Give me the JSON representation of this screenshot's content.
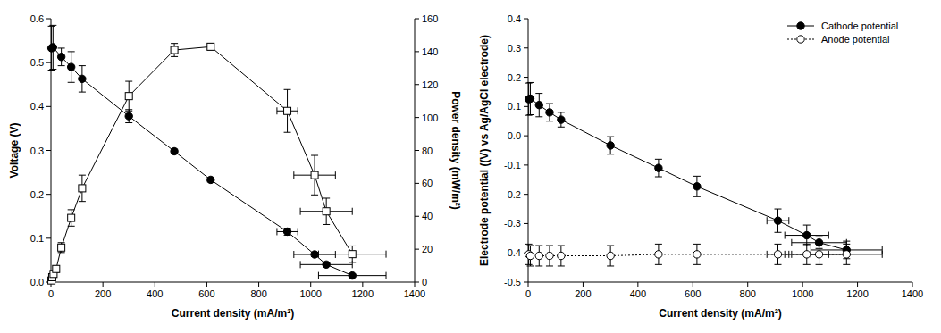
{
  "chart_data": [
    {
      "type": "line",
      "x_label": "Current density (mA/m²)",
      "y_label": "Voltage (V)",
      "y2_label": "Power density (mW/m²)",
      "xlim": [
        0,
        1400
      ],
      "xticks": [
        0,
        200,
        400,
        600,
        800,
        1000,
        1200,
        1400
      ],
      "ylim": [
        0,
        0.6
      ],
      "yticks": [
        {
          "value": 0,
          "label": "0.0"
        },
        0.1,
        0.2,
        0.3,
        0.4,
        0.5,
        0.6
      ],
      "y2lim": [
        0,
        160
      ],
      "y2ticks": [
        0,
        20,
        40,
        60,
        80,
        100,
        120,
        140,
        160
      ],
      "series": [
        {
          "name": "Voltage",
          "color": "#000000",
          "marker": "filled-circle",
          "line_style": "solid",
          "x": [
            2,
            8,
            40,
            78,
            120,
            300,
            475,
            615,
            910,
            1015,
            1060,
            1160
          ],
          "values": [
            0.533,
            0.535,
            0.513,
            0.49,
            0.463,
            0.378,
            0.298,
            0.233,
            0.115,
            0.063,
            0.04,
            0.015
          ],
          "errors": [
            0.05,
            0.05,
            0.02,
            0.035,
            0.03,
            0.015,
            0.005,
            0.005,
            0.008,
            0.005,
            0.003,
            0.003
          ],
          "x_errors": [
            0,
            0,
            0,
            0,
            0,
            0,
            0,
            0,
            40,
            80,
            100,
            130
          ]
        },
        {
          "name": "Power density",
          "color": "#000000",
          "marker": "open-square",
          "line_style": "solid",
          "axis": "y2",
          "x": [
            2,
            5,
            10,
            20,
            40,
            78,
            120,
            300,
            475,
            615,
            910,
            1015,
            1060,
            1160
          ],
          "values": [
            1,
            3,
            5,
            8,
            21,
            39,
            57,
            113,
            141,
            143,
            104,
            65,
            43,
            17
          ],
          "errors": [
            0.5,
            1,
            1,
            2,
            3,
            5,
            8,
            9,
            4,
            2,
            13,
            12,
            8,
            5
          ],
          "x_errors": [
            0,
            0,
            0,
            0,
            0,
            0,
            0,
            0,
            0,
            0,
            40,
            80,
            100,
            130
          ]
        }
      ]
    },
    {
      "type": "line",
      "x_label": "Current density (mA/m²)",
      "y_label": "Electrode potential ((V) vs Ag/AgCl electrode)",
      "legend": "upper-right",
      "xlim": [
        0,
        1400
      ],
      "xticks": [
        0,
        200,
        400,
        600,
        800,
        1000,
        1200,
        1400
      ],
      "ylim": [
        -0.5,
        0.4
      ],
      "yticks": [
        -0.5,
        -0.4,
        -0.3,
        -0.2,
        -0.1,
        {
          "value": 0,
          "label": "0.0"
        },
        0.1,
        0.2,
        0.3,
        0.4
      ],
      "series": [
        {
          "name": "Cathode potential",
          "color": "#000000",
          "marker": "filled-circle",
          "line_style": "solid",
          "x": [
            2,
            8,
            40,
            78,
            120,
            300,
            475,
            615,
            910,
            1015,
            1060,
            1160
          ],
          "values": [
            0.125,
            0.127,
            0.105,
            0.08,
            0.055,
            -0.033,
            -0.11,
            -0.173,
            -0.29,
            -0.34,
            -0.365,
            -0.39
          ],
          "errors": [
            0.055,
            0.055,
            0.04,
            0.03,
            0.025,
            0.03,
            0.03,
            0.035,
            0.04,
            0.035,
            0.02,
            0.03
          ],
          "x_errors": [
            0,
            0,
            0,
            0,
            0,
            0,
            0,
            0,
            40,
            80,
            100,
            130
          ]
        },
        {
          "name": "Anode potential",
          "color": "#000000",
          "marker": "open-circle",
          "line_style": "dotted",
          "x": [
            2,
            8,
            40,
            78,
            120,
            300,
            475,
            615,
            910,
            1015,
            1060,
            1160
          ],
          "values": [
            -0.405,
            -0.41,
            -0.41,
            -0.41,
            -0.41,
            -0.41,
            -0.405,
            -0.405,
            -0.405,
            -0.405,
            -0.405,
            -0.405
          ],
          "errors": [
            0.035,
            0.035,
            0.035,
            0.035,
            0.035,
            0.035,
            0.035,
            0.035,
            0.035,
            0.035,
            0.035,
            0.035
          ],
          "x_errors": [
            0,
            0,
            0,
            0,
            0,
            0,
            0,
            0,
            40,
            80,
            100,
            130
          ]
        }
      ]
    }
  ]
}
